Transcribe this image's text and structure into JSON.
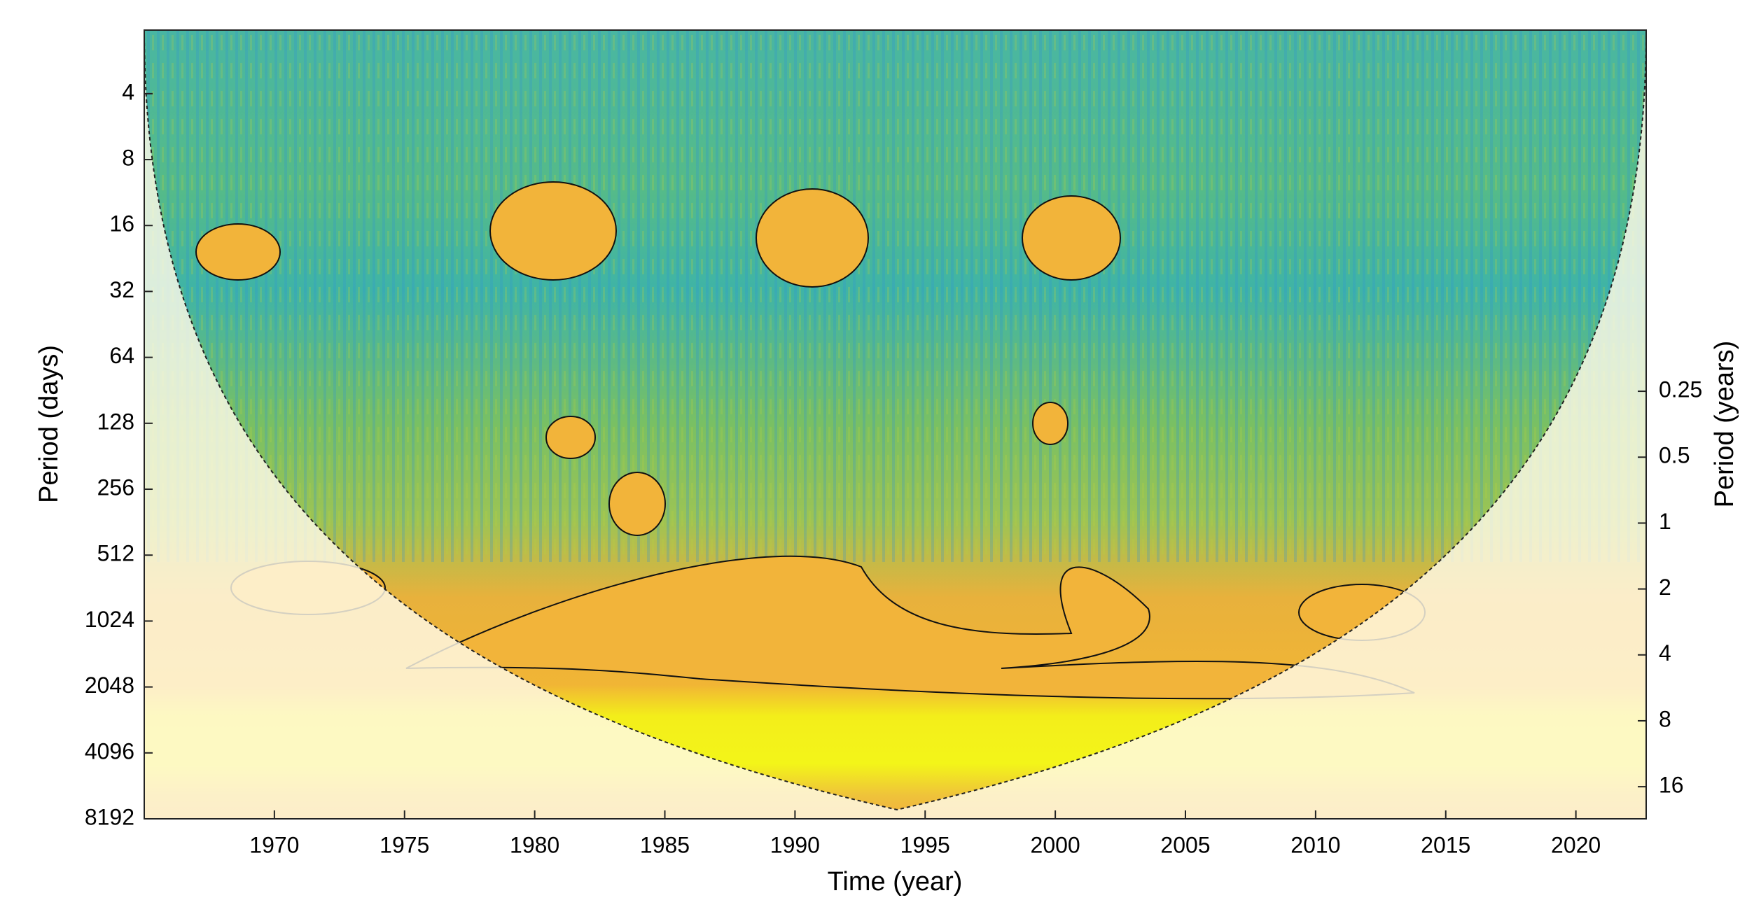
{
  "chart_data": {
    "type": "heatmap",
    "xlabel": "Time (year)",
    "ylabel": "Period (days)",
    "y2label": "Period (years)",
    "xlim": [
      1965,
      2022.7
    ],
    "xticks": [
      1970,
      1975,
      1980,
      1985,
      1990,
      1995,
      2000,
      2005,
      2010,
      2015,
      2020
    ],
    "yscale": "log",
    "ylim": [
      2.05,
      8192
    ],
    "yticks": [
      4,
      8,
      16,
      32,
      64,
      128,
      256,
      512,
      1024,
      2048,
      4096,
      8192
    ],
    "y2lim": [
      0.0056,
      22.43
    ],
    "y2ticks": [
      0.25,
      0.5,
      1,
      2,
      4,
      8,
      16
    ]
  }
}
